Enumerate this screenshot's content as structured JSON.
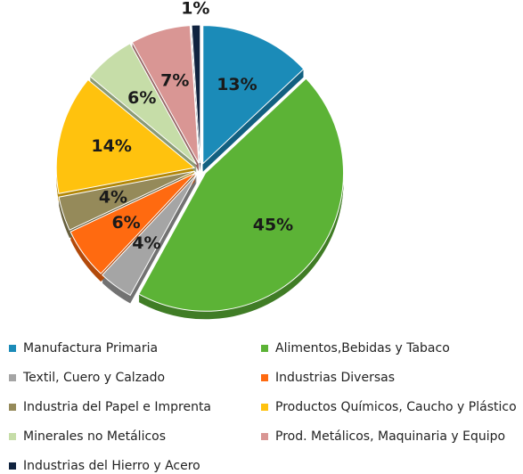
{
  "chart_data": {
    "type": "pie",
    "categories": [
      "Manufactura Primaria",
      "Alimentos,Bebidas y Tabaco",
      "Textil, Cuero y Calzado",
      "Industrias Diversas",
      "Industria del Papel e Imprenta",
      "Productos Químicos, Caucho y Plástico",
      "Minerales no Metálicos",
      "Prod. Metálicos, Maquinaria y Equipo",
      "Industrias del Hierro y Acero"
    ],
    "values": [
      13,
      45,
      4,
      6,
      4,
      14,
      6,
      7,
      1
    ],
    "value_labels": [
      "13%",
      "45%",
      "4%",
      "6%",
      "4%",
      "14%",
      "6%",
      "7%",
      "1%"
    ],
    "colors": [
      "#1b8bb8",
      "#5cb336",
      "#a5a5a5",
      "#ff6a10",
      "#958a5a",
      "#ffc20e",
      "#c6dda8",
      "#d99694",
      "#10233f"
    ],
    "legend": "bottom"
  }
}
